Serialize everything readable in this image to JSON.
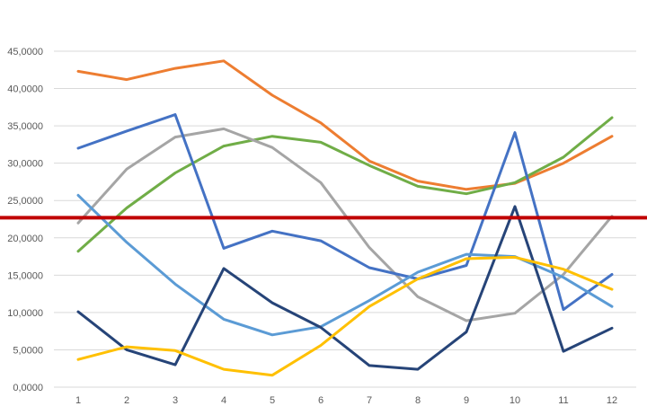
{
  "chart_data": {
    "type": "line",
    "title": "",
    "xlabel": "",
    "ylabel": "",
    "categories": [
      "1",
      "2",
      "3",
      "4",
      "5",
      "6",
      "7",
      "8",
      "9",
      "10",
      "11",
      "12"
    ],
    "y_ticks": [
      "0,0000",
      "5,0000",
      "10,0000",
      "15,0000",
      "20,0000",
      "25,0000",
      "30,0000",
      "35,0000",
      "40,0000",
      "45,0000"
    ],
    "ylim": [
      0,
      45
    ],
    "grid": true,
    "legend": "none",
    "series": [
      {
        "color": "#ED7D31",
        "values": [
          42.3,
          41.2,
          42.7,
          43.7,
          39.1,
          35.4,
          30.3,
          27.6,
          26.5,
          27.3,
          30.0,
          33.6
        ]
      },
      {
        "color": "#70AD47",
        "values": [
          18.2,
          24.0,
          28.7,
          32.3,
          33.6,
          32.8,
          29.7,
          26.9,
          25.9,
          27.4,
          30.8,
          36.1
        ]
      },
      {
        "color": "#A5A5A5",
        "values": [
          22.0,
          29.2,
          33.5,
          34.6,
          32.1,
          27.4,
          18.7,
          12.1,
          8.9,
          9.9,
          15.1,
          22.9
        ]
      },
      {
        "color": "#4472C4",
        "values": [
          32.0,
          34.3,
          36.5,
          18.6,
          20.9,
          19.6,
          16.0,
          14.5,
          16.3,
          34.1,
          10.4,
          15.1
        ]
      },
      {
        "color": "#5B9BD5",
        "values": [
          25.7,
          19.4,
          13.8,
          9.1,
          7.0,
          8.1,
          11.6,
          15.4,
          17.8,
          17.5,
          14.7,
          10.8
        ]
      },
      {
        "color": "#264478",
        "values": [
          10.1,
          5.0,
          3.0,
          15.9,
          11.3,
          8.0,
          2.9,
          2.4,
          7.4,
          24.2,
          4.8,
          7.9
        ]
      },
      {
        "color": "#FFC000",
        "values": [
          3.7,
          5.4,
          4.9,
          2.4,
          1.6,
          5.6,
          10.8,
          14.5,
          17.2,
          17.4,
          15.8,
          13.1
        ]
      }
    ],
    "reference_line": {
      "value": 22.7,
      "color": "#C00000"
    }
  }
}
